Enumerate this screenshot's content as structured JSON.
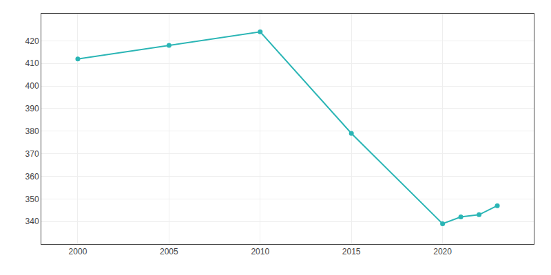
{
  "chart_data": {
    "type": "line",
    "x": [
      2000,
      2005,
      2010,
      2015,
      2020,
      2021,
      2022,
      2023
    ],
    "values": [
      412,
      418,
      424,
      379,
      339,
      342,
      343,
      347
    ],
    "color": "#2ab5b5",
    "marker": "circle",
    "line_style": "solid",
    "xlim": [
      1998,
      2025
    ],
    "ylim": [
      330,
      432
    ],
    "xticks": [
      2000,
      2005,
      2010,
      2015,
      2020
    ],
    "yticks": [
      340,
      350,
      360,
      370,
      380,
      390,
      400,
      410,
      420
    ],
    "grid": true
  }
}
